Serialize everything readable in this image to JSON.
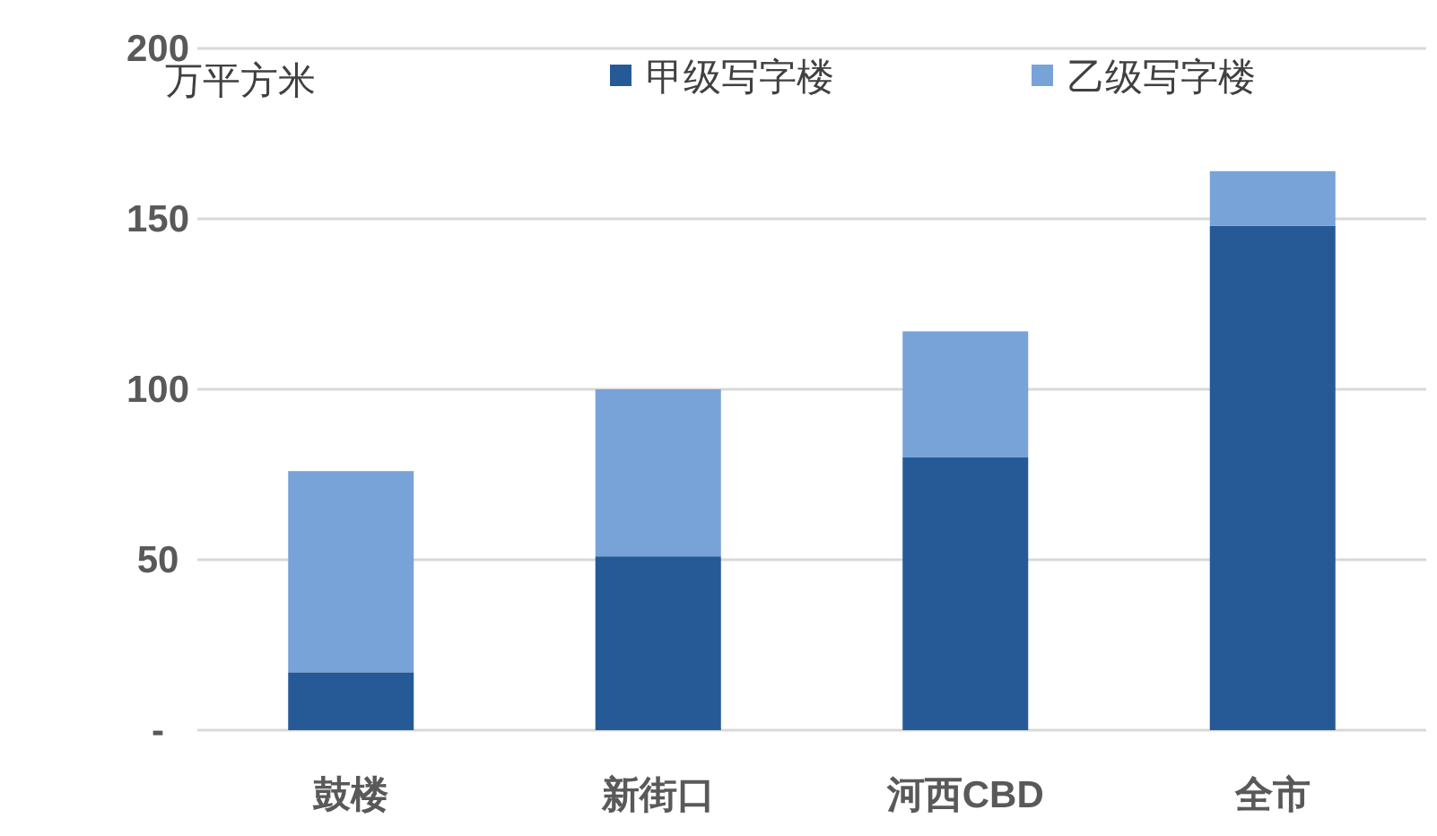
{
  "chart_data": {
    "type": "bar",
    "stacked": true,
    "ylabel": "万平方米",
    "categories": [
      "鼓楼",
      "新街口",
      "河西CBD",
      "全市"
    ],
    "series": [
      {
        "name": "甲级写字楼",
        "color": "#255a96",
        "values": [
          17,
          51,
          80,
          148
        ]
      },
      {
        "name": "乙级写字楼",
        "color": "#78a3d8",
        "values": [
          59,
          49,
          37,
          16
        ]
      }
    ],
    "ylim": [
      0,
      200
    ],
    "yticks": [
      {
        "value": 0,
        "label": "-"
      },
      50,
      100,
      150,
      200
    ],
    "grid": "y",
    "legend": "top"
  }
}
